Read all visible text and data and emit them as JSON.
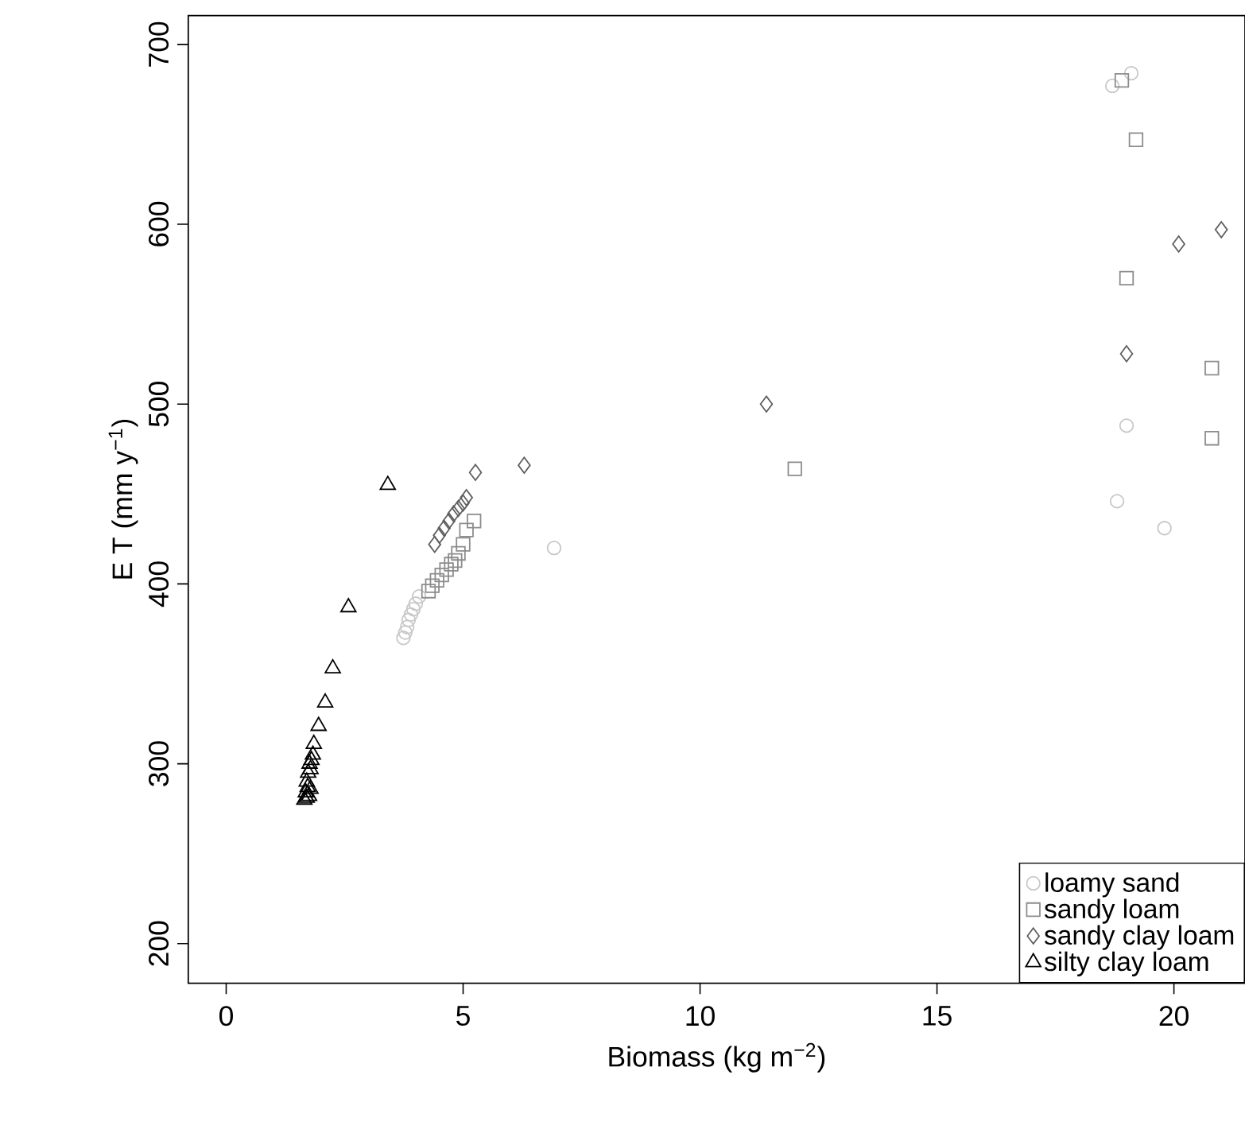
{
  "chart_data": {
    "type": "scatter",
    "xlabel": "Biomass (kg m$^{−2}$)",
    "ylabel": "E T (mm y$^{−1}$)",
    "xlim": [
      -0.8,
      21.5
    ],
    "ylim": [
      178,
      716
    ],
    "xticks": [
      0,
      5,
      10,
      15,
      20
    ],
    "yticks": [
      200,
      300,
      400,
      500,
      600,
      700
    ],
    "legend": "bottom right",
    "series": [
      {
        "name": "loamy sand",
        "color": "#c8c8c8",
        "marker": "circle",
        "x": [
          3.74,
          3.78,
          3.82,
          3.85,
          3.9,
          3.95,
          4.0,
          4.07,
          6.92,
          18.7,
          19.1,
          19.0,
          18.8,
          19.8
        ],
        "values": [
          370,
          373,
          376,
          380,
          383,
          386,
          389,
          393,
          420,
          677,
          684,
          488,
          446,
          431
        ]
      },
      {
        "name": "sandy loam",
        "color": "#8c8c8c",
        "marker": "square",
        "x": [
          4.27,
          4.35,
          4.45,
          4.55,
          4.65,
          4.75,
          4.83,
          4.9,
          5.0,
          5.07,
          5.23,
          12.0,
          18.9,
          19.2,
          19.0,
          20.8,
          20.8
        ],
        "values": [
          396,
          399,
          402,
          405,
          408,
          411,
          413,
          417,
          422,
          430,
          435,
          464,
          680,
          647,
          570,
          520,
          481
        ]
      },
      {
        "name": "sandy clay loam",
        "color": "#5f5f5f",
        "marker": "diamond",
        "x": [
          4.4,
          4.5,
          4.6,
          4.7,
          4.8,
          4.9,
          5.0,
          5.07,
          5.26,
          6.29,
          11.4,
          19.0,
          20.1,
          21.0
        ],
        "values": [
          422,
          427,
          431,
          435,
          439,
          442,
          445,
          448,
          462,
          466,
          500,
          528,
          589,
          597
        ]
      },
      {
        "name": "silty clay loam",
        "color": "#000000",
        "marker": "triangle",
        "x": [
          1.65,
          1.7,
          1.75,
          1.68,
          1.72,
          1.78,
          1.7,
          1.73,
          1.78,
          1.76,
          1.8,
          1.83,
          1.85,
          1.95,
          2.09,
          2.25,
          2.58,
          3.41
        ],
        "values": [
          280,
          281,
          282,
          284,
          287,
          286,
          290,
          295,
          297,
          300,
          302,
          305,
          311,
          321,
          334,
          353,
          387,
          455
        ]
      }
    ]
  }
}
